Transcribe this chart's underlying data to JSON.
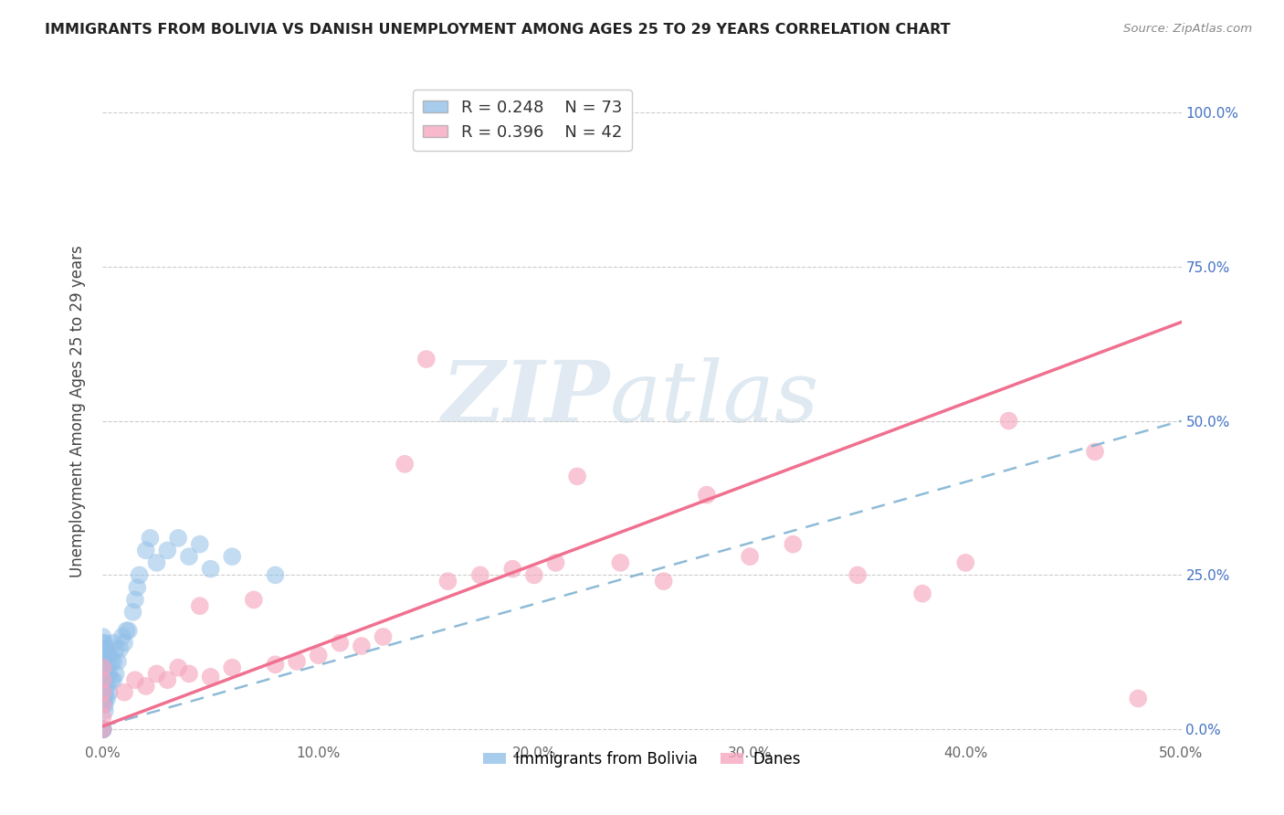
{
  "title": "IMMIGRANTS FROM BOLIVIA VS DANISH UNEMPLOYMENT AMONG AGES 25 TO 29 YEARS CORRELATION CHART",
  "source": "Source: ZipAtlas.com",
  "ylabel": "Unemployment Among Ages 25 to 29 years",
  "xlim": [
    0.0,
    0.5
  ],
  "ylim": [
    -0.02,
    1.05
  ],
  "legend_r_bolivia": "R = 0.248",
  "legend_n_bolivia": "N = 73",
  "legend_r_danes": "R = 0.396",
  "legend_n_danes": "N = 42",
  "bolivia_color": "#92c0e8",
  "danes_color": "#f5a8bf",
  "bolivia_line_color": "#7aafd0",
  "danes_line_color": "#f07090",
  "watermark_zip": "ZIP",
  "watermark_atlas": "atlas",
  "watermark_color_zip": "#c5d8ea",
  "watermark_color_atlas": "#b8cfe0",
  "bolivia_x": [
    0.0,
    0.0,
    0.0,
    0.0,
    0.0,
    0.0,
    0.0,
    0.0,
    0.0,
    0.0,
    0.0,
    0.0,
    0.0,
    0.0,
    0.0,
    0.0,
    0.0,
    0.0,
    0.0,
    0.0,
    0.0,
    0.0,
    0.0,
    0.0,
    0.0,
    0.0,
    0.0,
    0.0,
    0.0,
    0.0,
    0.001,
    0.001,
    0.001,
    0.001,
    0.001,
    0.001,
    0.001,
    0.001,
    0.002,
    0.002,
    0.002,
    0.002,
    0.002,
    0.003,
    0.003,
    0.003,
    0.004,
    0.004,
    0.005,
    0.005,
    0.005,
    0.006,
    0.006,
    0.007,
    0.008,
    0.009,
    0.01,
    0.011,
    0.012,
    0.014,
    0.015,
    0.016,
    0.017,
    0.02,
    0.022,
    0.025,
    0.03,
    0.035,
    0.04,
    0.045,
    0.05,
    0.06,
    0.08
  ],
  "bolivia_y": [
    0.0,
    0.0,
    0.0,
    0.0,
    0.0,
    0.0,
    0.0,
    0.0,
    0.0,
    0.0,
    0.04,
    0.045,
    0.05,
    0.055,
    0.06,
    0.065,
    0.07,
    0.075,
    0.08,
    0.085,
    0.09,
    0.095,
    0.1,
    0.105,
    0.11,
    0.115,
    0.12,
    0.13,
    0.14,
    0.15,
    0.03,
    0.04,
    0.05,
    0.06,
    0.08,
    0.1,
    0.12,
    0.14,
    0.05,
    0.07,
    0.09,
    0.11,
    0.13,
    0.06,
    0.09,
    0.12,
    0.08,
    0.11,
    0.08,
    0.11,
    0.14,
    0.09,
    0.13,
    0.11,
    0.13,
    0.15,
    0.14,
    0.16,
    0.16,
    0.19,
    0.21,
    0.23,
    0.25,
    0.29,
    0.31,
    0.27,
    0.29,
    0.31,
    0.28,
    0.3,
    0.26,
    0.28,
    0.25
  ],
  "danes_x": [
    0.0,
    0.0,
    0.0,
    0.0,
    0.0,
    0.0,
    0.01,
    0.015,
    0.02,
    0.025,
    0.03,
    0.035,
    0.04,
    0.045,
    0.05,
    0.06,
    0.07,
    0.08,
    0.09,
    0.1,
    0.11,
    0.12,
    0.13,
    0.14,
    0.15,
    0.16,
    0.175,
    0.19,
    0.2,
    0.21,
    0.22,
    0.24,
    0.26,
    0.28,
    0.3,
    0.32,
    0.35,
    0.38,
    0.4,
    0.42,
    0.46,
    0.48
  ],
  "danes_y": [
    0.0,
    0.02,
    0.04,
    0.06,
    0.08,
    0.1,
    0.06,
    0.08,
    0.07,
    0.09,
    0.08,
    0.1,
    0.09,
    0.2,
    0.085,
    0.1,
    0.21,
    0.105,
    0.11,
    0.12,
    0.14,
    0.135,
    0.15,
    0.43,
    0.6,
    0.24,
    0.25,
    0.26,
    0.25,
    0.27,
    0.41,
    0.27,
    0.24,
    0.38,
    0.28,
    0.3,
    0.25,
    0.22,
    0.27,
    0.5,
    0.45,
    0.05
  ],
  "bolivia_trend": [
    0.0,
    0.5,
    0.005,
    0.5
  ],
  "danes_trend": [
    0.0,
    0.5,
    0.005,
    0.66
  ],
  "xtick_vals": [
    0.0,
    0.1,
    0.2,
    0.3,
    0.4,
    0.5
  ],
  "ytick_vals": [
    0.0,
    0.25,
    0.5,
    0.75,
    1.0
  ]
}
